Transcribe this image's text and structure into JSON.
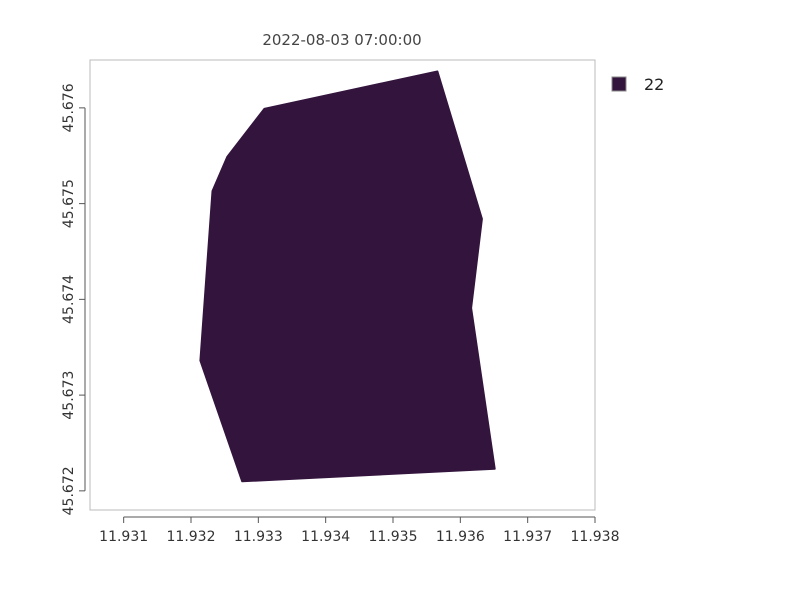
{
  "chart_data": {
    "type": "map",
    "title": "2022-08-03 07:00:00",
    "xlim": [
      11.9305,
      11.938
    ],
    "ylim": [
      45.6718,
      45.6765
    ],
    "x_ticks": [
      {
        "value": 11.931,
        "label": "11.931"
      },
      {
        "value": 11.932,
        "label": "11.932"
      },
      {
        "value": 11.933,
        "label": "11.933"
      },
      {
        "value": 11.934,
        "label": "11.934"
      },
      {
        "value": 11.935,
        "label": "11.935"
      },
      {
        "value": 11.936,
        "label": "11.936"
      },
      {
        "value": 11.937,
        "label": "11.937"
      },
      {
        "value": 11.938,
        "label": "11.938"
      }
    ],
    "y_ticks": [
      {
        "value": 45.672,
        "label": "45.672"
      },
      {
        "value": 45.673,
        "label": "45.673"
      },
      {
        "value": 45.674,
        "label": "45.674"
      },
      {
        "value": 45.675,
        "label": "45.675"
      },
      {
        "value": 45.676,
        "label": "45.676"
      }
    ],
    "region": {
      "value_label": "22",
      "color": "#33143d",
      "polygon": [
        [
          11.93309,
          45.67599
        ],
        [
          11.93566,
          45.67638
        ],
        [
          11.93632,
          45.67484
        ],
        [
          11.93616,
          45.67391
        ],
        [
          11.93651,
          45.67223
        ],
        [
          11.93276,
          45.6721
        ],
        [
          11.93214,
          45.67336
        ],
        [
          11.93232,
          45.67513
        ],
        [
          11.93254,
          45.67549
        ]
      ]
    },
    "legend": {
      "position": "top-right",
      "entries": [
        {
          "label": "22",
          "color": "#33143d"
        }
      ]
    }
  }
}
